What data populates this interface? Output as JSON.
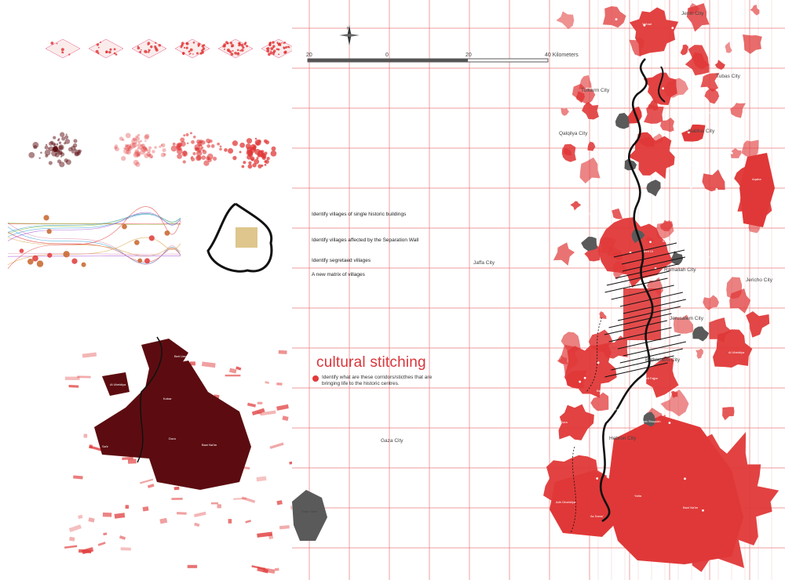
{
  "map": {
    "scale": {
      "labels": [
        "20",
        "0",
        "20",
        "40 Kilometers"
      ]
    },
    "cities": [
      "Jenin City",
      "Tubas City",
      "Tulkarm City",
      "Qalqilya City",
      "Nablus City",
      "Ramallah City",
      "Jericho City",
      "Jaffa City",
      "Jerusalem City",
      "Bethlehem City",
      "Hebron City",
      "Gaza City",
      "Khan Yunis"
    ],
    "villages": [
      "Ya'bad",
      "Aqaba",
      "Asira ash Shamaliya",
      "Beit Furik",
      "Aqraba",
      "Deir Ghassana",
      "Beit Ur",
      "Kobar",
      "Taybeh",
      "Al Ubeidiya",
      "Za'tara",
      "Bani Na'im",
      "Yatta",
      "Adh Dhahiriya",
      "As Samu'",
      "Dura",
      "Beit Ummar",
      "Halhul",
      "Sa'ir",
      "Ash Shuyukh",
      "Beit Fajjar"
    ],
    "colors": {
      "grid": "#e05050",
      "village_fill": "#e03838",
      "segregated_fill": "#5a5a5a",
      "corridor": "#111111",
      "dark_village": "#5c0c10"
    }
  },
  "legend": {
    "items": [
      "Identify villages of single historic buildings",
      "Identify villages affected by the Separation Wall",
      "Identify segretaed villages",
      "A new matrix of villages"
    ]
  },
  "stitching": {
    "title": "cultural stitching",
    "description": "Identify what are these corridors/sticthes that are bringing life to the historic centres."
  },
  "left": {
    "dark_labels": [
      "Beit Ummar",
      "Sa'ir",
      "Dura",
      "Halhul",
      "Bani Na'im",
      "Al Ubeidiya",
      "Kobar"
    ]
  }
}
